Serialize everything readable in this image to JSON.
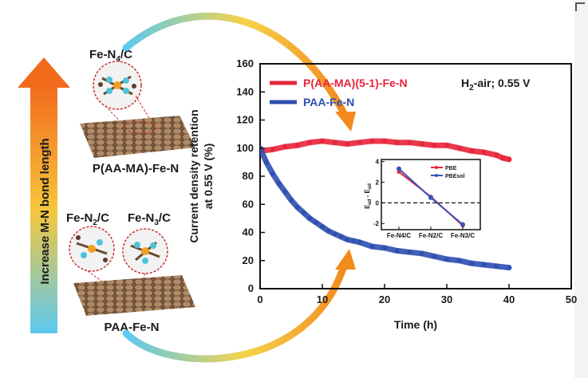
{
  "left_panel": {
    "arrow_label": "Increase M-N bond length",
    "fe_n4": "Fe-N",
    "fe_n4_sub": "4",
    "fe_n4_tail": "/C",
    "fe_n2": "Fe-N",
    "fe_n2_sub": "2",
    "fe_n2_tail": "/C",
    "fe_n3": "Fe-N",
    "fe_n3_sub": "3",
    "fe_n3_tail": "/C",
    "catalyst_top": "P(AA-MA)-Fe-N",
    "catalyst_bottom": "PAA-Fe-N"
  },
  "condition_label": "H",
  "condition_sub": "2",
  "condition_tail": "-air; 0.55 V",
  "colors": {
    "red": "#e8253b",
    "blue": "#2f4fb0",
    "arrow_top": "#f07a1a",
    "arrow_bottom": "#44b7ea"
  },
  "chart_data": [
    {
      "type": "scatter",
      "xlabel": "Time (h)",
      "ylabel_line1": "Current density retention",
      "ylabel_line2": "at 0.55 V (%)",
      "xlim": [
        0,
        50
      ],
      "ylim": [
        0,
        160
      ],
      "xticks": [
        "0",
        "10",
        "20",
        "30",
        "40",
        "50"
      ],
      "yticks": [
        "0",
        "20",
        "40",
        "60",
        "80",
        "100",
        "120",
        "140",
        "160"
      ],
      "series": [
        {
          "name": "P(AA-MA)(5-1)-Fe-N",
          "color": "#e8253b",
          "x": [
            0,
            2,
            4,
            6,
            8,
            10,
            12,
            14,
            16,
            18,
            20,
            22,
            24,
            26,
            28,
            30,
            32,
            34,
            36,
            38,
            39,
            40
          ],
          "y": [
            98,
            99,
            101,
            102,
            104,
            105,
            104,
            103,
            104,
            105,
            105,
            104,
            104,
            103,
            102,
            102,
            100,
            98,
            97,
            95,
            93,
            92
          ]
        },
        {
          "name": "PAA-Fe-N",
          "color": "#2f4fb0",
          "x": [
            0,
            1,
            2,
            3,
            4,
            5,
            6,
            7,
            8,
            9,
            10,
            11,
            12,
            13,
            14,
            15,
            16,
            18,
            20,
            22,
            24,
            26,
            28,
            30,
            32,
            34,
            36,
            38,
            40
          ],
          "y": [
            100,
            90,
            82,
            75,
            69,
            63,
            58,
            54,
            50,
            47,
            44,
            41,
            39,
            37,
            35,
            34,
            33,
            30,
            29,
            27,
            26,
            25,
            23,
            21,
            20,
            18,
            17,
            16,
            15
          ]
        }
      ]
    },
    {
      "type": "line",
      "categories": [
        "Fe-N4/C",
        "Fe-N2/C",
        "Fe-N3/C"
      ],
      "ylabel": "E",
      "ylabel_sub1": "ad",
      "ylabel_mid": " - E",
      "ylabel_sub2": "ad",
      "ylim": [
        -2.6,
        4.2
      ],
      "yticks": [
        "-2",
        "0",
        "2",
        "4"
      ],
      "reference_line": 0,
      "series": [
        {
          "name": "PBE",
          "color": "#e8253b",
          "values": [
            3.0,
            0.6,
            -2.2
          ]
        },
        {
          "name": "PBEsol",
          "color": "#3a56b8",
          "values": [
            3.3,
            0.5,
            -2.1
          ]
        }
      ]
    }
  ]
}
